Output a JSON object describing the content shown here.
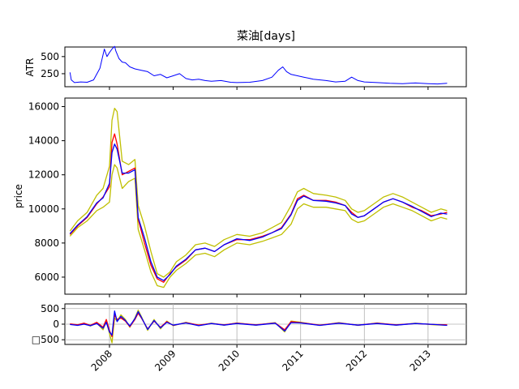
{
  "title": "菜油[days]",
  "chart_data": [
    {
      "panel": "atr",
      "type": "line",
      "ylabel": "ATR",
      "ylim": [
        60,
        640
      ],
      "yticks": [
        "250",
        "500"
      ],
      "ytick_values": [
        250,
        500
      ],
      "grid": false,
      "series": [
        {
          "color": "#0000ff",
          "x": [
            2007.38,
            2007.4,
            2007.45,
            2007.55,
            2007.65,
            2007.75,
            2007.85,
            2007.92,
            2007.96,
            2008.0,
            2008.04,
            2008.08,
            2008.1,
            2008.15,
            2008.2,
            2008.25,
            2008.32,
            2008.4,
            2008.5,
            2008.6,
            2008.7,
            2008.8,
            2008.9,
            2009.0,
            2009.1,
            2009.2,
            2009.3,
            2009.4,
            2009.5,
            2009.6,
            2009.75,
            2009.9,
            2010.0,
            2010.2,
            2010.4,
            2010.55,
            2010.65,
            2010.72,
            2010.78,
            2010.85,
            2010.95,
            2011.05,
            2011.2,
            2011.4,
            2011.55,
            2011.7,
            2011.8,
            2011.9,
            2012.0,
            2012.2,
            2012.4,
            2012.6,
            2012.8,
            2013.0,
            2013.15,
            2013.3
          ],
          "values": [
            270,
            160,
            120,
            130,
            125,
            160,
            330,
            610,
            500,
            560,
            610,
            650,
            580,
            470,
            420,
            410,
            350,
            320,
            300,
            280,
            220,
            240,
            190,
            220,
            250,
            180,
            160,
            170,
            150,
            140,
            150,
            125,
            120,
            125,
            150,
            200,
            300,
            350,
            280,
            240,
            220,
            200,
            170,
            150,
            130,
            140,
            200,
            150,
            130,
            120,
            110,
            105,
            115,
            105,
            100,
            110
          ]
        }
      ]
    },
    {
      "panel": "price",
      "type": "line",
      "ylabel": "price",
      "ylim": [
        5000,
        16500
      ],
      "yticks": [
        "6000",
        "8000",
        "10000",
        "12000",
        "14000",
        "16000"
      ],
      "ytick_values": [
        6000,
        8000,
        10000,
        12000,
        14000,
        16000
      ],
      "grid": false,
      "series": [
        {
          "color": "#bfbf00",
          "x": [
            2007.38,
            2007.5,
            2007.65,
            2007.8,
            2007.9,
            2008.0,
            2008.04,
            2008.08,
            2008.12,
            2008.2,
            2008.3,
            2008.4,
            2008.45,
            2008.55,
            2008.65,
            2008.75,
            2008.85,
            2008.95,
            2009.05,
            2009.2,
            2009.35,
            2009.5,
            2009.65,
            2009.8,
            2010.0,
            2010.2,
            2010.4,
            2010.55,
            2010.7,
            2010.85,
            2010.95,
            2011.05,
            2011.2,
            2011.4,
            2011.55,
            2011.7,
            2011.8,
            2011.9,
            2012.0,
            2012.15,
            2012.3,
            2012.45,
            2012.6,
            2012.75,
            2012.9,
            2013.05,
            2013.2,
            2013.3
          ],
          "values": [
            8700,
            9300,
            9800,
            10800,
            11200,
            12500,
            15200,
            15900,
            15700,
            12800,
            12600,
            12900,
            10200,
            9000,
            7500,
            6200,
            6000,
            6300,
            6900,
            7300,
            7900,
            8000,
            7800,
            8200,
            8500,
            8400,
            8600,
            8900,
            9200,
            10200,
            11000,
            11200,
            10900,
            10800,
            10700,
            10500,
            10000,
            9800,
            9900,
            10300,
            10700,
            10900,
            10700,
            10400,
            10100,
            9800,
            10000,
            9900
          ]
        },
        {
          "color": "#bfbf00",
          "x": [
            2007.38,
            2007.5,
            2007.65,
            2007.8,
            2007.9,
            2008.0,
            2008.04,
            2008.08,
            2008.12,
            2008.2,
            2008.3,
            2008.4,
            2008.45,
            2008.55,
            2008.65,
            2008.75,
            2008.85,
            2008.95,
            2009.05,
            2009.2,
            2009.35,
            2009.5,
            2009.65,
            2009.8,
            2010.0,
            2010.2,
            2010.4,
            2010.55,
            2010.7,
            2010.85,
            2010.95,
            2011.05,
            2011.2,
            2011.4,
            2011.55,
            2011.7,
            2011.8,
            2011.9,
            2012.0,
            2012.15,
            2012.3,
            2012.45,
            2012.6,
            2012.75,
            2012.9,
            2013.05,
            2013.2,
            2013.3
          ],
          "values": [
            8400,
            8900,
            9300,
            9900,
            10100,
            10400,
            12000,
            12600,
            12400,
            11200,
            11600,
            11800,
            8800,
            7600,
            6300,
            5500,
            5400,
            6000,
            6400,
            6800,
            7300,
            7400,
            7200,
            7600,
            8000,
            7900,
            8100,
            8300,
            8500,
            9100,
            10000,
            10300,
            10100,
            10100,
            10000,
            9900,
            9400,
            9200,
            9300,
            9700,
            10100,
            10300,
            10100,
            9900,
            9600,
            9300,
            9500,
            9400
          ]
        },
        {
          "color": "#ff0000",
          "x": [
            2007.38,
            2007.5,
            2007.65,
            2007.8,
            2007.9,
            2008.0,
            2008.04,
            2008.08,
            2008.12,
            2008.2,
            2008.3,
            2008.4,
            2008.45,
            2008.55,
            2008.65,
            2008.75,
            2008.85,
            2008.95,
            2009.05,
            2009.2,
            2009.35,
            2009.5,
            2009.65,
            2009.8,
            2010.0,
            2010.2,
            2010.4,
            2010.55,
            2010.7,
            2010.85,
            2010.95,
            2011.05,
            2011.2,
            2011.4,
            2011.55,
            2011.7,
            2011.8,
            2011.9,
            2012.0,
            2012.15,
            2012.3,
            2012.45,
            2012.6,
            2012.75,
            2012.9,
            2013.05,
            2013.2,
            2013.3
          ],
          "values": [
            8500,
            9000,
            9500,
            10300,
            10700,
            11300,
            13900,
            14400,
            13800,
            12000,
            12200,
            12400,
            9400,
            8000,
            6700,
            5900,
            5700,
            6200,
            6600,
            7000,
            7600,
            7700,
            7500,
            7900,
            8200,
            8200,
            8400,
            8600,
            8900,
            9700,
            10600,
            10800,
            10500,
            10500,
            10400,
            10200,
            9800,
            9500,
            9600,
            10000,
            10400,
            10600,
            10400,
            10100,
            9900,
            9600,
            9700,
            9800
          ]
        },
        {
          "color": "#0000ff",
          "x": [
            2007.38,
            2007.5,
            2007.65,
            2007.8,
            2007.9,
            2008.0,
            2008.04,
            2008.08,
            2008.12,
            2008.2,
            2008.3,
            2008.4,
            2008.45,
            2008.55,
            2008.65,
            2008.75,
            2008.85,
            2008.95,
            2009.05,
            2009.2,
            2009.35,
            2009.5,
            2009.65,
            2009.8,
            2010.0,
            2010.2,
            2010.4,
            2010.55,
            2010.7,
            2010.85,
            2010.95,
            2011.05,
            2011.2,
            2011.4,
            2011.55,
            2011.7,
            2011.8,
            2011.9,
            2012.0,
            2012.15,
            2012.3,
            2012.45,
            2012.6,
            2012.75,
            2012.9,
            2013.05,
            2013.2,
            2013.3
          ],
          "values": [
            8550,
            9050,
            9550,
            10350,
            10650,
            11500,
            13300,
            13800,
            13500,
            12100,
            12100,
            12300,
            9500,
            8300,
            6900,
            6000,
            5800,
            6150,
            6650,
            7050,
            7600,
            7700,
            7500,
            7900,
            8250,
            8150,
            8350,
            8600,
            8850,
            9650,
            10500,
            10750,
            10500,
            10450,
            10350,
            10200,
            9700,
            9500,
            9600,
            10000,
            10400,
            10600,
            10400,
            10150,
            9850,
            9550,
            9750,
            9700
          ]
        }
      ]
    },
    {
      "panel": "volatility",
      "type": "line",
      "ylabel": "",
      "ylim": [
        -650,
        650
      ],
      "yticks": [
        "500",
        "0",
        "□500"
      ],
      "ytick_values": [
        500,
        0,
        -500
      ],
      "grid": true,
      "series": [
        {
          "color": "#bfbf00",
          "x": [
            2007.38,
            2007.5,
            2007.6,
            2007.7,
            2007.8,
            2007.9,
            2007.95,
            2008.0,
            2008.04,
            2008.08,
            2008.12,
            2008.18,
            2008.25,
            2008.32,
            2008.4,
            2008.45,
            2008.5,
            2008.6,
            2008.7,
            2008.8,
            2008.9,
            2009.0,
            2009.2,
            2009.4,
            2009.6,
            2009.8,
            2010.0,
            2010.3,
            2010.6,
            2010.75,
            2010.85,
            2011.0,
            2011.3,
            2011.6,
            2011.9,
            2012.2,
            2012.5,
            2012.8,
            2013.1,
            2013.3
          ],
          "values": [
            0,
            -30,
            20,
            -60,
            40,
            -180,
            100,
            -300,
            -600,
            200,
            100,
            300,
            150,
            -100,
            200,
            450,
            250,
            -200,
            150,
            -150,
            100,
            -50,
            60,
            -40,
            30,
            -30,
            40,
            -30,
            50,
            -250,
            100,
            60,
            -40,
            50,
            -40,
            40,
            -30,
            30,
            -20,
            -30
          ]
        },
        {
          "color": "#ff0000",
          "x": [
            2007.38,
            2007.5,
            2007.6,
            2007.7,
            2007.8,
            2007.9,
            2007.95,
            2008.0,
            2008.04,
            2008.08,
            2008.12,
            2008.18,
            2008.25,
            2008.32,
            2008.4,
            2008.45,
            2008.5,
            2008.6,
            2008.7,
            2008.8,
            2008.9,
            2009.0,
            2009.2,
            2009.4,
            2009.6,
            2009.8,
            2010.0,
            2010.3,
            2010.6,
            2010.75,
            2010.85,
            2011.0,
            2011.3,
            2011.6,
            2011.9,
            2012.2,
            2012.5,
            2012.8,
            2013.1,
            2013.3
          ],
          "values": [
            10,
            -20,
            30,
            -40,
            60,
            -100,
            150,
            -200,
            -400,
            300,
            150,
            200,
            100,
            -80,
            150,
            350,
            200,
            -150,
            100,
            -100,
            80,
            -40,
            50,
            -30,
            20,
            -20,
            30,
            -20,
            40,
            -180,
            80,
            50,
            -30,
            40,
            -30,
            30,
            -20,
            20,
            -10,
            -20
          ]
        },
        {
          "color": "#0000ff",
          "x": [
            2007.38,
            2007.5,
            2007.6,
            2007.7,
            2007.8,
            2007.9,
            2007.95,
            2008.0,
            2008.04,
            2008.08,
            2008.12,
            2008.18,
            2008.25,
            2008.32,
            2008.4,
            2008.45,
            2008.5,
            2008.6,
            2008.7,
            2008.8,
            2008.9,
            2009.0,
            2009.2,
            2009.4,
            2009.6,
            2009.8,
            2010.0,
            2010.3,
            2010.6,
            2010.75,
            2010.85,
            2011.0,
            2011.3,
            2011.6,
            2011.9,
            2012.2,
            2012.5,
            2012.8,
            2013.1,
            2013.3
          ],
          "values": [
            -10,
            -40,
            0,
            -50,
            20,
            -130,
            60,
            -250,
            -350,
            420,
            80,
            250,
            120,
            -60,
            180,
            400,
            220,
            -170,
            120,
            -120,
            60,
            -30,
            40,
            -50,
            20,
            -30,
            20,
            -30,
            30,
            -220,
            50,
            40,
            -40,
            30,
            -30,
            20,
            -30,
            20,
            -10,
            -40
          ]
        }
      ]
    }
  ],
  "xaxis": {
    "ticks": [
      "2008",
      "2009",
      "2010",
      "2011",
      "2012",
      "2013"
    ],
    "values": [
      2008,
      2009,
      2010,
      2011,
      2012,
      2013
    ],
    "xlim": [
      2007.3,
      2013.6
    ]
  }
}
